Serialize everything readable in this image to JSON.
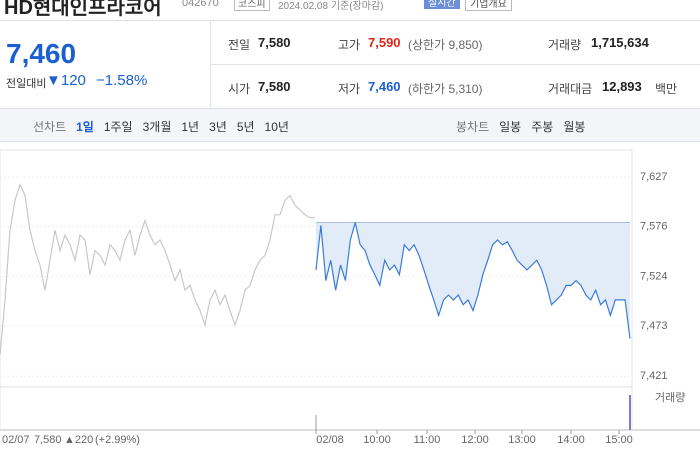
{
  "header": {
    "name": "HD현대인프라코어",
    "code": "042670",
    "market": "코스피",
    "date": "2024.02.08 기준(장마감)",
    "realtime": "실시간",
    "company": "기업개요"
  },
  "price": {
    "current": "7,460",
    "change_label": "전일대비",
    "change": "▼120",
    "rate": "−1.58%"
  },
  "summary": {
    "rows": [
      [
        {
          "label": "전일",
          "value": "7,580"
        },
        {
          "label": "고가",
          "value": "7,590",
          "note": "(상한가 9,850)"
        },
        {
          "label": "거래량",
          "value": "1,715,634"
        }
      ],
      [
        {
          "label": "시가",
          "value": "7,580"
        },
        {
          "label": "저가",
          "value": "7,460",
          "note": "(하한가 5,310)"
        },
        {
          "label": "거래대금",
          "value": "12,893",
          "unit": "백만"
        }
      ]
    ]
  },
  "toolbar": {
    "line_label": "선차트",
    "periods": [
      "1일",
      "1주일",
      "3개월",
      "1년",
      "3년",
      "5년",
      "10년"
    ],
    "candle_label": "봉차트",
    "candles": [
      "일봉",
      "주봉",
      "월봉"
    ]
  },
  "chart_data": {
    "type": "line",
    "ylim": [
      7412,
      7655
    ],
    "yticks": [
      {
        "value": 7627,
        "label": "7,627"
      },
      {
        "value": 7576,
        "label": "7,576"
      },
      {
        "value": 7524,
        "label": "7,524"
      },
      {
        "value": 7473,
        "label": "7,473"
      },
      {
        "value": 7421,
        "label": "7,421"
      }
    ],
    "baseline": 7580,
    "xticklabels": [
      "02/08",
      "10:00",
      "11:00",
      "12:00",
      "13:00",
      "14:00",
      "15:00"
    ],
    "prev_label": {
      "date": "02/07",
      "price": "7,580",
      "change": "▲220",
      "rate": "(+2.99%)"
    },
    "volume_label": "거래량",
    "series": [
      {
        "name": "02/07",
        "color": "#c8c8c8",
        "values": [
          7443,
          7500,
          7572,
          7603,
          7619,
          7608,
          7572,
          7551,
          7536,
          7510,
          7541,
          7572,
          7551,
          7567,
          7557,
          7541,
          7567,
          7562,
          7526,
          7551,
          7546,
          7536,
          7557,
          7551,
          7541,
          7562,
          7572,
          7546,
          7567,
          7582,
          7567,
          7557,
          7562,
          7551,
          7536,
          7520,
          7531,
          7510,
          7515,
          7500,
          7489,
          7474,
          7500,
          7510,
          7495,
          7505,
          7489,
          7474,
          7489,
          7510,
          7515,
          7531,
          7541,
          7546,
          7562,
          7588,
          7588,
          7603,
          7608,
          7598,
          7593,
          7588,
          7585,
          7585
        ]
      },
      {
        "name": "02/08",
        "color": "#3b7bd8",
        "values": [
          7531,
          7577,
          7520,
          7541,
          7510,
          7536,
          7520,
          7562,
          7580,
          7557,
          7551,
          7536,
          7526,
          7515,
          7541,
          7531,
          7536,
          7526,
          7557,
          7551,
          7557,
          7546,
          7531,
          7515,
          7500,
          7484,
          7500,
          7505,
          7500,
          7505,
          7495,
          7500,
          7489,
          7505,
          7526,
          7541,
          7557,
          7562,
          7557,
          7560,
          7551,
          7541,
          7536,
          7531,
          7536,
          7541,
          7531,
          7515,
          7495,
          7500,
          7505,
          7515,
          7515,
          7520,
          7515,
          7505,
          7500,
          7510,
          7495,
          7500,
          7484,
          7500,
          7500,
          7500,
          7460
        ]
      }
    ]
  }
}
